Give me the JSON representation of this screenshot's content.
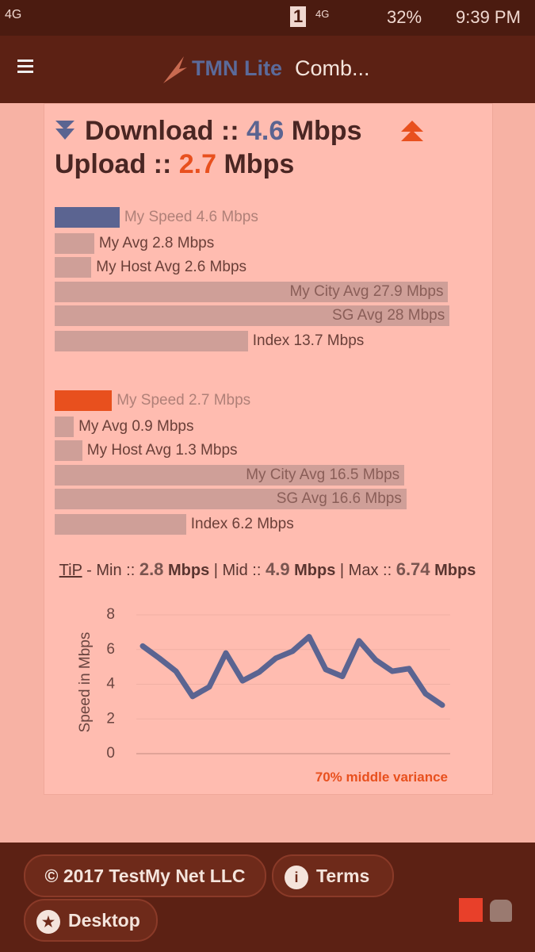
{
  "status_bar": {
    "network": "4G",
    "sim": "1",
    "network2": "4G",
    "battery": "32%",
    "time": "9:39 PM"
  },
  "app_bar": {
    "brand": "TMN Lite",
    "title": "Comb..."
  },
  "results": {
    "download": {
      "label": "Download ::",
      "value": 4.6,
      "unit": "Mbps"
    },
    "upload": {
      "label": "Upload ::",
      "value": 2.7,
      "unit": "Mbps"
    }
  },
  "bars": {
    "unit": "Mbps",
    "download": {
      "xlim": [
        0,
        28.1
      ],
      "color": "#5b6491",
      "items": [
        {
          "label": "My Speed",
          "value": 4.6
        },
        {
          "label": "My Avg",
          "value": 2.8
        },
        {
          "label": "My Host Avg",
          "value": 2.6
        },
        {
          "label": "My City Avg",
          "value": 27.9
        },
        {
          "label": "SG Avg",
          "value": 28
        },
        {
          "label": "Index",
          "value": 13.7
        }
      ]
    },
    "upload": {
      "xlim": [
        0,
        18.7
      ],
      "color": "#e8501e",
      "items": [
        {
          "label": "My Speed",
          "value": 2.7
        },
        {
          "label": "My Avg",
          "value": 0.9
        },
        {
          "label": "My Host Avg",
          "value": 1.3
        },
        {
          "label": "My City Avg",
          "value": 16.5
        },
        {
          "label": "SG Avg",
          "value": 16.6
        },
        {
          "label": "Index",
          "value": 6.2
        }
      ]
    }
  },
  "tip": {
    "label": "TiP",
    "min_label": "- Min ::",
    "min": 2.8,
    "mid_label": "| Mid ::",
    "mid": 4.9,
    "max_label": "| Max ::",
    "max": 6.74,
    "unit": "Mbps"
  },
  "chart_data": {
    "type": "line",
    "y_label": "Speed in Mbps",
    "ylim": [
      0,
      8
    ],
    "yticks": [
      0,
      2,
      4,
      6,
      8
    ],
    "grid": true,
    "color": "#5b6491",
    "values": [
      6.2,
      5.5,
      4.75,
      3.3,
      3.85,
      5.8,
      4.2,
      4.7,
      5.5,
      5.9,
      6.74,
      4.85,
      4.45,
      6.5,
      5.4,
      4.75,
      4.9,
      3.45,
      2.8
    ],
    "annotation": "70% middle variance"
  },
  "footer": {
    "copyright": "© 2017 TestMy Net LLC",
    "terms": "Terms",
    "desktop": "Desktop"
  }
}
